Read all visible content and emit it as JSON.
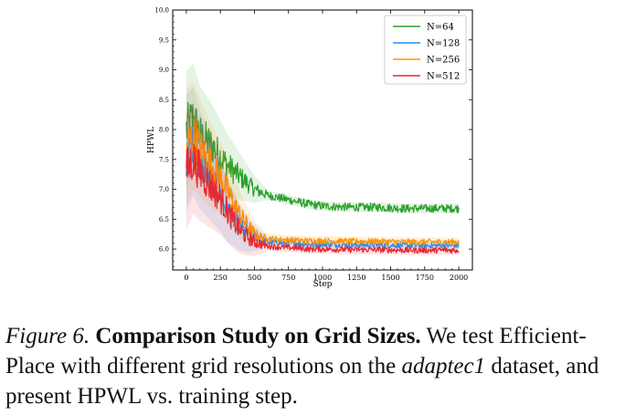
{
  "caption": {
    "figure_label": "Figure 6.",
    "title": "Comparison Study on Grid Sizes.",
    "text_1": "We test Efficient-Place with different grid resolutions on the",
    "dataset": "adaptec1",
    "text_2": "dataset, and present HPWL vs. training step."
  },
  "chart_data": {
    "type": "line",
    "title": "",
    "xlabel": "Step",
    "ylabel": "HPWL",
    "xlim": [
      -100,
      2100
    ],
    "ylim": [
      5.65,
      10.0
    ],
    "xticks": [
      0,
      250,
      500,
      750,
      1000,
      1250,
      1500,
      1750,
      2000
    ],
    "xtick_labels": [
      "0",
      "250",
      "500",
      "750",
      "1000",
      "1250",
      "1500",
      "1750",
      "2000"
    ],
    "yticks": [
      6.0,
      6.5,
      7.0,
      7.5,
      8.0,
      8.5,
      9.0,
      9.5,
      10.0
    ],
    "ytick_labels": [
      "6.0",
      "6.5",
      "7.0",
      "7.5",
      "8.0",
      "8.5",
      "9.0",
      "9.5",
      "10.0"
    ],
    "grid": false,
    "legend_position": "top-right",
    "x": [
      0,
      50,
      100,
      150,
      200,
      250,
      300,
      350,
      400,
      450,
      500,
      550,
      600,
      700,
      800,
      900,
      1000,
      1200,
      1400,
      1600,
      1800,
      2000
    ],
    "series": [
      {
        "name": "N=64",
        "color": "#2ca02c",
        "noise": 0.07,
        "values": [
          8.0,
          8.2,
          7.9,
          7.8,
          7.7,
          7.55,
          7.4,
          7.3,
          7.2,
          7.1,
          7.0,
          6.95,
          6.9,
          6.85,
          6.8,
          6.75,
          6.72,
          6.7,
          6.7,
          6.68,
          6.68,
          6.68
        ]
      },
      {
        "name": "N=128",
        "color": "#1f8fff",
        "noise": 0.05,
        "values": [
          7.6,
          7.8,
          7.5,
          7.3,
          7.1,
          6.9,
          6.65,
          6.5,
          6.35,
          6.25,
          6.2,
          6.15,
          6.12,
          6.1,
          6.1,
          6.08,
          6.08,
          6.07,
          6.07,
          6.06,
          6.06,
          6.06
        ]
      },
      {
        "name": "N=256",
        "color": "#ff9500",
        "noise": 0.05,
        "values": [
          7.7,
          7.9,
          7.7,
          7.5,
          7.35,
          7.2,
          7.0,
          6.75,
          6.55,
          6.4,
          6.25,
          6.2,
          6.18,
          6.16,
          6.15,
          6.14,
          6.14,
          6.13,
          6.13,
          6.12,
          6.12,
          6.12
        ]
      },
      {
        "name": "N=512",
        "color": "#e8282e",
        "noise": 0.05,
        "values": [
          7.3,
          7.5,
          7.3,
          7.15,
          7.0,
          6.85,
          6.65,
          6.45,
          6.3,
          6.2,
          6.12,
          6.08,
          6.05,
          6.03,
          6.02,
          6.0,
          6.0,
          5.99,
          5.99,
          5.98,
          5.98,
          5.98
        ]
      }
    ]
  }
}
